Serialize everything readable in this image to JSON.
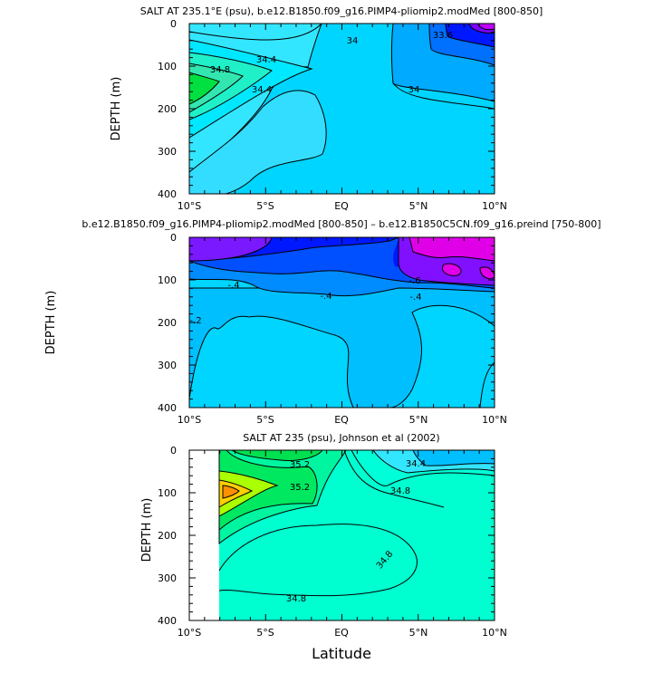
{
  "chart_data": [
    {
      "type": "contour",
      "title": "SALT AT 235.1°E (psu), b.e12.B1850.f09_g16.PIMP4-pliomip2.modMed [800-850]",
      "xlabel": "",
      "ylabel": "DEPTH (m)",
      "xlim": [
        -10,
        10
      ],
      "ylim": [
        0,
        400
      ],
      "x_ticks": [
        "10°S",
        "5°S",
        "EQ",
        "5°N",
        "10°N"
      ],
      "y_ticks": [
        "0",
        "100",
        "200",
        "300",
        "400"
      ],
      "contour_labels": [
        {
          "text": "34.4",
          "lat": -5.5,
          "depth": 82
        },
        {
          "text": "34.8",
          "lat": -8.0,
          "depth": 108
        },
        {
          "text": "34.4",
          "lat": -5.2,
          "depth": 160
        },
        {
          "text": "34",
          "lat": 0.6,
          "depth": 40
        },
        {
          "text": "33.6",
          "lat": 5.8,
          "depth": 30
        },
        {
          "text": "34",
          "lat": 4.8,
          "depth": 152
        }
      ],
      "salinity_range_psu": [
        33.2,
        35.2
      ]
    },
    {
      "type": "contour",
      "title": "b.e12.B1850.f09_g16.PIMP4-pliomip2.modMed [800-850] – b.e12.B1850C5CN.f09_g16.preind [750-800]",
      "xlabel": "",
      "ylabel": "DEPTH (m)",
      "xlim": [
        -10,
        10
      ],
      "ylim": [
        0,
        400
      ],
      "x_ticks": [
        "10°S",
        "5°S",
        "EQ",
        "5°N",
        "10°N"
      ],
      "y_ticks": [
        "0",
        "100",
        "200",
        "300",
        "400"
      ],
      "contour_labels": [
        {
          "text": "-.4",
          "lat": -7.0,
          "depth": 112
        },
        {
          "text": "-.4",
          "lat": -1.8,
          "depth": 138
        },
        {
          "text": "-.6",
          "lat": 4.8,
          "depth": 100
        },
        {
          "text": "-.4",
          "lat": 4.9,
          "depth": 135
        },
        {
          "text": "-.2",
          "lat": -9.6,
          "depth": 195
        }
      ],
      "difference_range_psu": [
        -1.2,
        0
      ]
    },
    {
      "type": "contour",
      "title": "SALT AT 235 (psu), Johnson et al (2002)",
      "xlabel": "Latitude",
      "ylabel": "DEPTH (m)",
      "xlim": [
        -10,
        10
      ],
      "ylim": [
        0,
        400
      ],
      "data_start_lat": -8,
      "x_ticks": [
        "10°S",
        "5°S",
        "EQ",
        "5°N",
        "10°N"
      ],
      "y_ticks": [
        "0",
        "100",
        "200",
        "300",
        "400"
      ],
      "contour_labels": [
        {
          "text": "35.2",
          "lat": -2.5,
          "depth": 40
        },
        {
          "text": "35.2",
          "lat": -3.0,
          "depth": 94
        },
        {
          "text": "34.4",
          "lat": 5.0,
          "depth": 32
        },
        {
          "text": "34.8",
          "lat": 3.4,
          "depth": 102
        },
        {
          "text": "34.8",
          "lat": 3.0,
          "depth": 268
        },
        {
          "text": "34.8",
          "lat": -2.8,
          "depth": 345
        }
      ],
      "salinity_range_psu": [
        34.0,
        35.8
      ]
    }
  ]
}
